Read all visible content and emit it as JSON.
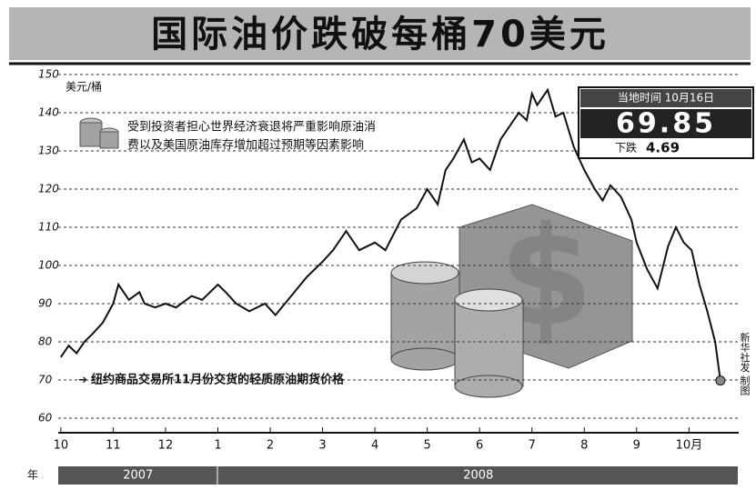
{
  "chart_data": {
    "type": "line",
    "title": "国际油价跌破每桶70美元",
    "y_label": "美元/桶",
    "annotation": [
      "受到投资者担心世界经济衰退将严重影响原油消",
      "费以及美国原油库存增加超过预期等因素影响"
    ],
    "info_box": {
      "date": "当地时间 10月16日",
      "price": "69.85",
      "change_label": "下跌",
      "change": "4.69"
    },
    "credit": "新华社发 制图",
    "year_unit": "年",
    "years": [
      {
        "label": "2007",
        "start": -0.05,
        "end": 3.0
      },
      {
        "label": "2008",
        "start": 3.0,
        "end": 12.95
      }
    ],
    "ylim": [
      60,
      150
    ],
    "yticks": [
      60,
      70,
      80,
      90,
      100,
      110,
      120,
      130,
      140,
      150
    ],
    "xlim": [
      -0.05,
      12.95
    ],
    "xticks": [
      {
        "value": 0,
        "label": "10"
      },
      {
        "value": 1,
        "label": "11"
      },
      {
        "value": 2,
        "label": "12"
      },
      {
        "value": 3,
        "label": "1"
      },
      {
        "value": 4,
        "label": "2"
      },
      {
        "value": 5,
        "label": "3"
      },
      {
        "value": 6,
        "label": "4"
      },
      {
        "value": 7,
        "label": "5"
      },
      {
        "value": 8,
        "label": "6"
      },
      {
        "value": 9,
        "label": "7"
      },
      {
        "value": 10,
        "label": "8"
      },
      {
        "value": 11,
        "label": "9"
      },
      {
        "value": 12,
        "label": "10月"
      }
    ],
    "grid": true,
    "series": [
      {
        "name": "纽约商品交易所11月份交货的轻质原油期货价格",
        "color": "#111111",
        "x": [
          0,
          0.15,
          0.3,
          0.45,
          0.6,
          0.8,
          1.0,
          1.1,
          1.3,
          1.5,
          1.6,
          1.8,
          2.0,
          2.2,
          2.5,
          2.7,
          3.0,
          3.15,
          3.35,
          3.6,
          3.9,
          4.1,
          4.4,
          4.7,
          5.0,
          5.2,
          5.45,
          5.7,
          6.0,
          6.2,
          6.5,
          6.8,
          7.0,
          7.2,
          7.35,
          7.5,
          7.7,
          7.85,
          8.0,
          8.2,
          8.4,
          8.6,
          8.75,
          8.9,
          9.0,
          9.1,
          9.3,
          9.45,
          9.6,
          9.8,
          10.0,
          10.2,
          10.35,
          10.5,
          10.7,
          10.9,
          11.0,
          11.2,
          11.4,
          11.6,
          11.75,
          11.9,
          12.05,
          12.2,
          12.35,
          12.5,
          12.6
        ],
        "values": [
          76,
          79,
          77,
          80,
          82,
          85,
          90,
          95,
          91,
          93,
          90,
          89,
          90,
          89,
          92,
          91,
          95,
          93,
          90,
          88,
          90,
          87,
          92,
          97,
          101,
          104,
          109,
          104,
          106,
          104,
          112,
          115,
          120,
          116,
          125,
          128,
          133,
          127,
          128,
          125,
          133,
          137,
          140,
          138,
          145,
          142,
          146,
          139,
          140,
          131,
          125,
          120,
          117,
          121,
          118,
          112,
          106,
          99,
          94,
          105,
          110,
          106,
          104,
          95,
          88,
          80,
          69.85
        ]
      }
    ]
  }
}
